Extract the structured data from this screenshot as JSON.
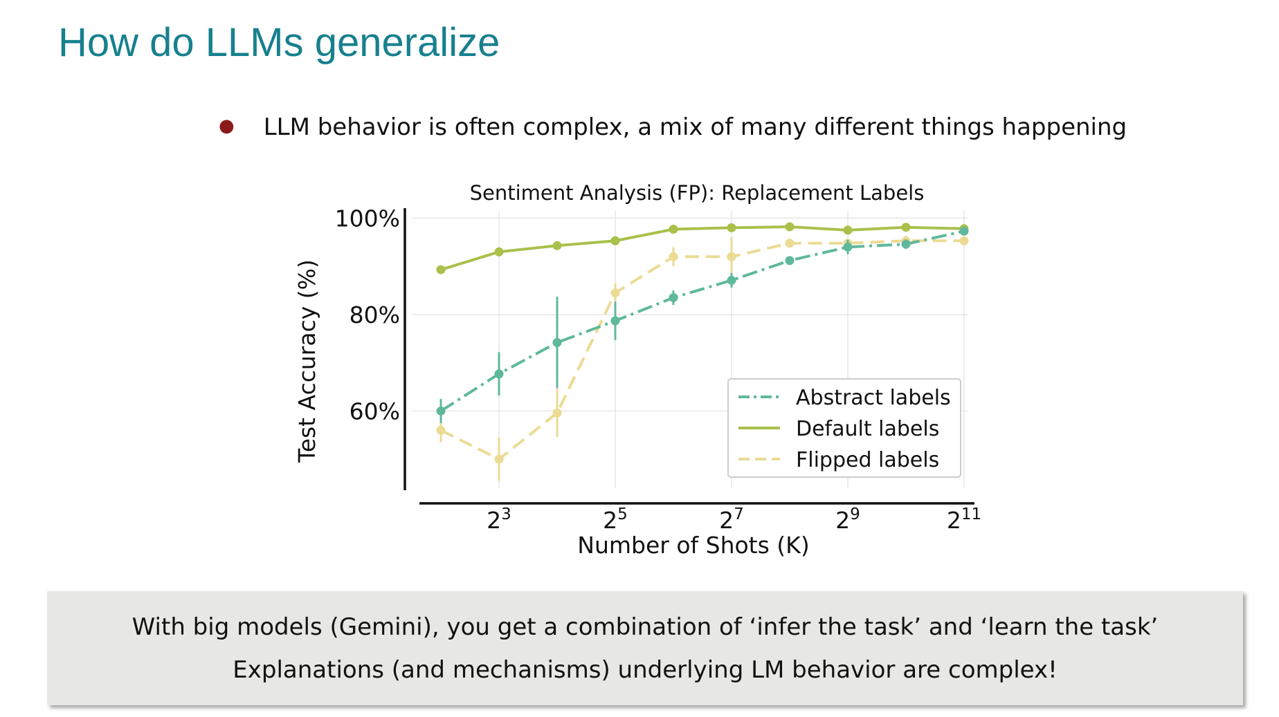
{
  "slide": {
    "title": "How do LLMs generalize",
    "bullet": "LLM behavior is often complex, a mix of many different things happening"
  },
  "callout": {
    "line1": "With big models (Gemini), you get a combination of ‘infer the task’ and ‘learn the task’",
    "line2": "Explanations (and mechanisms) underlying LM behavior are complex!"
  },
  "colors": {
    "title": "#17808e",
    "bullet": "#8b1a1a",
    "abstract": "#5fb89c",
    "default": "#a9c04a",
    "flipped": "#ebdb94"
  },
  "chart_data": {
    "type": "line",
    "title": "Sentiment Analysis (FP): Replacement Labels",
    "xlabel": "Number of Shots (K)",
    "ylabel": "Test Accuracy (%)",
    "x_scale": "log2",
    "x": [
      4,
      8,
      16,
      32,
      64,
      128,
      256,
      512,
      1024,
      2048
    ],
    "x_ticks": [
      {
        "value": 8,
        "base": "2",
        "exp": "3"
      },
      {
        "value": 32,
        "base": "2",
        "exp": "5"
      },
      {
        "value": 128,
        "base": "2",
        "exp": "7"
      },
      {
        "value": 512,
        "base": "2",
        "exp": "9"
      },
      {
        "value": 2048,
        "base": "2",
        "exp": "11"
      }
    ],
    "y_ticks": [
      {
        "value": 60,
        "label": "60%"
      },
      {
        "value": 80,
        "label": "80%"
      },
      {
        "value": 100,
        "label": "100%"
      }
    ],
    "ylim": [
      44,
      101.5
    ],
    "grid": true,
    "legend_position": "lower-right",
    "series": [
      {
        "name": "Abstract labels",
        "style": "dashdot",
        "values": [
          60,
          67.7,
          74.2,
          78.7,
          83.5,
          87.1,
          91.2,
          94.0,
          94.6,
          97.3
        ],
        "error": [
          2.5,
          4.5,
          9.5,
          4.0,
          1.5,
          1.5,
          0.8,
          1.5,
          1.0,
          0.5
        ]
      },
      {
        "name": "Default labels",
        "style": "solid",
        "values": [
          89.3,
          93.0,
          94.3,
          95.3,
          97.7,
          98.0,
          98.2,
          97.5,
          98.1,
          97.8
        ],
        "error": [
          0,
          0,
          0,
          0,
          0,
          0,
          0,
          0,
          0,
          0
        ]
      },
      {
        "name": "Flipped labels",
        "style": "dashed",
        "values": [
          56.0,
          50.0,
          59.6,
          84.5,
          92.0,
          92.0,
          94.8,
          94.8,
          95.3,
          95.3
        ],
        "error": [
          2.5,
          4.5,
          5.0,
          2.0,
          2.0,
          4.0,
          0.8,
          0.8,
          1.0,
          0.5
        ]
      }
    ]
  }
}
